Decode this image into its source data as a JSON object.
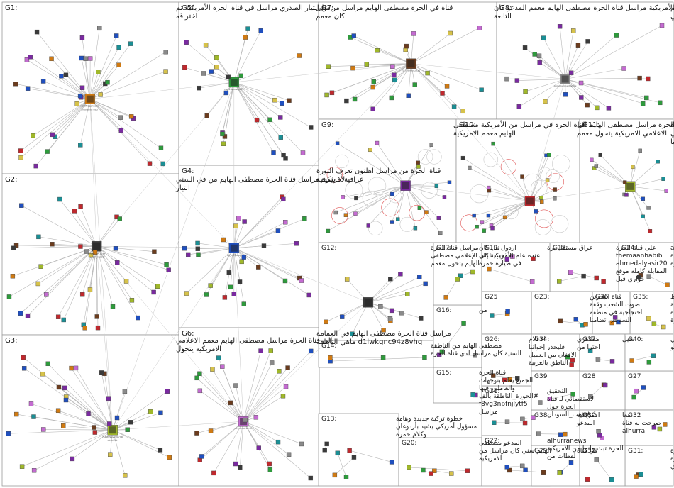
{
  "groups": [
    {
      "id": "G1",
      "lines": [
        "من التيار الصدري مراسل في قناة الحرة الأمريكية تم",
        "اختراقه"
      ]
    },
    {
      "id": "G2",
      "lines": [
        "الأمريكية مراسل قناة الحرة مصطفى الهايم من في السني",
        "التيار"
      ]
    },
    {
      "id": "G3",
      "lines": [
        "الى قناة الحرة مراسل مصطفى الهايم معمم الاعلامي",
        "الامريكية يتحول"
      ]
    },
    {
      "id": "G4",
      "lines": [
        "قناة الحرة من مراسل اهلنون تعرف الثورة",
        "عراقية لا شرقية"
      ]
    },
    {
      "id": "G5",
      "lines": [
        "قناة في الحرة مصطفى الهايم مراسل من على",
        "كان معمم"
      ]
    },
    {
      "id": "G6",
      "lines": [
        "مراسل قناة الحرة مصطفى الهايم في العمامة",
        "d1lwkgnc94z8vhq ماهي الناطقة"
      ]
    },
    {
      "id": "G7",
      "lines": [
        "الأمريكية مراسل قناة الحرة مصطفى الهايم معمم المدعو كان",
        "التابعة"
      ]
    },
    {
      "id": "G8",
      "lines": [
        "من قناة الحرة الأمريكية مراسل في مصطفى الهايم",
        "التيار السني"
      ]
    },
    {
      "id": "G9",
      "lines": [
        "قناة الحرة في مراسل من الأمريكية مصطفى",
        "الهايم معمم الامريكية"
      ]
    },
    {
      "id": "G10",
      "lines": [
        "قناة الحرة مراسل مصطفى الهايم الى",
        "الاعلامي الامريكية يتحول معمم"
      ]
    },
    {
      "id": "G11",
      "lines": [
        "المغرب من قناة الحرة",
        "بعد عن مأساة الاطفال في",
        "#البيدوفيليا"
      ]
    },
    {
      "id": "G12",
      "lines": [
        "مراسل قناة الحرة",
        "الأمريكية إلى الإعلامي مصطفى",
        "الهايم يتحول معمم"
      ]
    },
    {
      "id": "G13",
      "lines": [
        "خطوة تركية جديدة وهامة",
        "مسؤول أمريكي يشيد بأردوغان",
        "وكلام حمرة"
      ]
    },
    {
      "id": "G14",
      "lines": [
        "مصطفى الهايم من الناطقة",
        "السنية كان مراسل لدى قناة الحرة"
      ]
    },
    {
      "id": "G15",
      "lines": [
        "قناة الحرة",
        "الجميع يعلم بتوجهات",
        "والعاملين فيها",
        "#الحورة_الناطقة بالف",
        "f8vg3npfnjlytf5",
        "مراسل"
      ]
    },
    {
      "id": "G16",
      "lines": [
        "من"
      ]
    },
    {
      "id": "G17",
      "lines": [
        "اردول هل كان",
        "عنده علم بالذهب الكان",
        "في طيارة حمرة"
      ]
    },
    {
      "id": "G18",
      "lines": [
        "على قناة الحرة",
        "themaanhabib",
        "ahmedalyasir20",
        "المقابلة كاملة موقع",
        "حواري قبل"
      ]
    },
    {
      "id": "G19",
      "lines": [
        "عراق مستقل برة"
      ]
    },
    {
      "id": "G20",
      "lines": [
        "المدعو مصطفى",
        "الهايم سني كان مراسل من",
        "الأمريكية"
      ]
    },
    {
      "id": "G21",
      "lines": [
        "التحقيق",
        "الاستقصائي لـ قناة",
        "الحرة حول",
        "#ذهب_السودان"
      ]
    },
    {
      "id": "G22",
      "lines": [
        "alhurranews",
        "الحرة تبث وانما من الأمريكية",
        "لقطات من"
      ]
    },
    {
      "id": "G23",
      "lines": [
        "قناة البحرين",
        "صوت الشعب وقفة",
        "احتجاجية في منطقة",
        "السنابس تضامنا"
      ]
    },
    {
      "id": "G24",
      "lines": [
        "alhurrairaq",
        "قناة",
        "الحرة"
      ]
    },
    {
      "id": "G25",
      "lines": []
    },
    {
      "id": "G26",
      "lines": [
        "الاعلام",
        "فليحذر إخواننا",
        "الافغان من العميل",
        "الناطق بالعربية"
      ]
    },
    {
      "id": "G27",
      "lines": []
    },
    {
      "id": "G28",
      "lines": []
    },
    {
      "id": "G29",
      "lines": [
        "في قناة"
      ]
    },
    {
      "id": "G30",
      "lines": [
        "معا",
        "صرحت به قناة",
        "alhurra"
      ]
    },
    {
      "id": "G31",
      "lines": [
        "الحرة",
        "الأمريكية سارة",
        "فاكشوري"
      ]
    },
    {
      "id": "G32",
      "lines": []
    },
    {
      "id": "G33",
      "lines": []
    },
    {
      "id": "G34",
      "lines": [
        "مظاهري",
        "احترا من"
      ]
    },
    {
      "id": "G35",
      "lines": [
        "رابط",
        "الحلقة كاملة",
        "للقائي على قناة",
        "الحرة"
      ]
    },
    {
      "id": "G36",
      "lines": []
    },
    {
      "id": "G37",
      "lines": [
        "تخيل"
      ]
    },
    {
      "id": "G38",
      "lines": [
        "الأمريكية",
        "المدعو"
      ]
    },
    {
      "id": "G39",
      "lines": []
    },
    {
      "id": "G40",
      "lines": [
        "الأمريكية السني",
        "المدعو"
      ]
    }
  ],
  "node_labels": [
    "nsrafirzqahyazr2",
    "sheva_m41153",
    "huneessi2030758",
    "ali_m73lawy",
    "mahmoudsaid03",
    "ahmedalhamd",
    "m_shameri2011",
    "abdulrahmanhaider",
    "mohand_mad",
    "hazem_nasser",
    "almu7bir"
  ]
}
